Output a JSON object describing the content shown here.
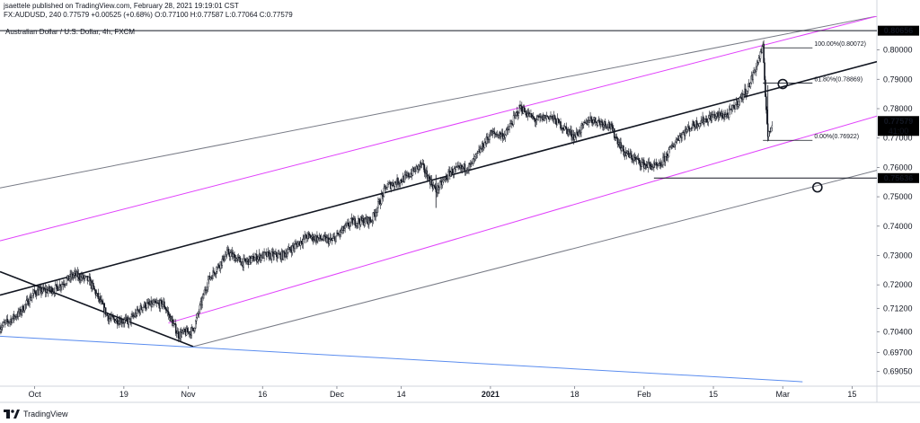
{
  "header": {
    "publisher_line": "jsaettele published on TradingView.com, February 28, 2021 19:19:01 CST",
    "symbol": "FX:AUDUSD, 240",
    "last": "0.77579",
    "change": "+0.00525 (+0.68%)",
    "open_label": "O:",
    "open": "0.77100",
    "high_label": "H:",
    "high": "0.77587",
    "low_label": "L:",
    "low": "0.77064",
    "close_label": "C:",
    "close": "0.77579"
  },
  "footer": {
    "brand": "TradingView"
  },
  "colors": {
    "candle": "#131722",
    "magenta": "#e040fb",
    "blue": "#5b8def",
    "gray": "#787b86",
    "price_tag": "#000000"
  },
  "chart_data": {
    "type": "candlestick",
    "title": "Australian Dollar / U.S. Dollar, 4h, FXCM",
    "y_unit": "USD",
    "ylim": [
      0.6855,
      0.8115
    ],
    "xlim": [
      "2020-09-24",
      "2021-03-20"
    ],
    "y_ticks": [
      0.8,
      0.79,
      0.78,
      0.77,
      0.76,
      0.75,
      0.74,
      0.73,
      0.72,
      0.712,
      0.704,
      0.697,
      0.6905
    ],
    "y_tick_labels": [
      "0.80000",
      "0.79000",
      "0.78000",
      "0.77000",
      "0.76000",
      "0.75000",
      "0.74000",
      "0.73000",
      "0.72000",
      "0.71200",
      "0.70400",
      "0.69700",
      "0.69050"
    ],
    "x_ticks": [
      {
        "date": "2020-10-01",
        "label": "Oct"
      },
      {
        "date": "2020-10-19",
        "label": "19"
      },
      {
        "date": "2020-11-01",
        "label": "Nov"
      },
      {
        "date": "2020-11-16",
        "label": "16"
      },
      {
        "date": "2020-12-01",
        "label": "Dec"
      },
      {
        "date": "2020-12-14",
        "label": "14"
      },
      {
        "date": "2021-01-01",
        "label": "2021"
      },
      {
        "date": "2021-01-18",
        "label": "18"
      },
      {
        "date": "2021-02-01",
        "label": "Feb"
      },
      {
        "date": "2021-02-15",
        "label": "15"
      },
      {
        "date": "2021-03-01",
        "label": "Mar"
      },
      {
        "date": "2021-03-15",
        "label": "15"
      }
    ],
    "price_path": [
      [
        "2020-09-24",
        0.7055
      ],
      [
        "2020-09-28",
        0.7105
      ],
      [
        "2020-10-01",
        0.7175
      ],
      [
        "2020-10-05",
        0.7185
      ],
      [
        "2020-10-09",
        0.7235
      ],
      [
        "2020-10-12",
        0.7215
      ],
      [
        "2020-10-16",
        0.7085
      ],
      [
        "2020-10-20",
        0.7075
      ],
      [
        "2020-10-23",
        0.713
      ],
      [
        "2020-10-27",
        0.7135
      ],
      [
        "2020-10-30",
        0.703
      ],
      [
        "2020-11-02",
        0.7045
      ],
      [
        "2020-11-05",
        0.7215
      ],
      [
        "2020-11-09",
        0.731
      ],
      [
        "2020-11-12",
        0.7275
      ],
      [
        "2020-11-16",
        0.73
      ],
      [
        "2020-11-20",
        0.73
      ],
      [
        "2020-11-25",
        0.7365
      ],
      [
        "2020-11-30",
        0.735
      ],
      [
        "2020-12-04",
        0.7415
      ],
      [
        "2020-12-08",
        0.742
      ],
      [
        "2020-12-11",
        0.7535
      ],
      [
        "2020-12-15",
        0.7565
      ],
      [
        "2020-12-18",
        0.761
      ],
      [
        "2020-12-21",
        0.752
      ],
      [
        "2020-12-24",
        0.7585
      ],
      [
        "2020-12-28",
        0.7605
      ],
      [
        "2021-01-01",
        0.7715
      ],
      [
        "2021-01-04",
        0.771
      ],
      [
        "2021-01-07",
        0.7805
      ],
      [
        "2021-01-10",
        0.776
      ],
      [
        "2021-01-13",
        0.7775
      ],
      [
        "2021-01-18",
        0.7705
      ],
      [
        "2021-01-21",
        0.7765
      ],
      [
        "2021-01-25",
        0.7745
      ],
      [
        "2021-01-28",
        0.765
      ],
      [
        "2021-02-01",
        0.761
      ],
      [
        "2021-02-04",
        0.76
      ],
      [
        "2021-02-08",
        0.7705
      ],
      [
        "2021-02-11",
        0.7745
      ],
      [
        "2021-02-15",
        0.7775
      ],
      [
        "2021-02-18",
        0.778
      ],
      [
        "2021-02-22",
        0.787
      ],
      [
        "2021-02-25",
        0.8007
      ],
      [
        "2021-02-26",
        0.77
      ],
      [
        "2021-02-27",
        0.7758
      ]
    ],
    "wicks": [
      {
        "date": "2020-12-21",
        "high": 0.7575,
        "low": 0.7462
      },
      {
        "date": "2021-02-26",
        "high": 0.788,
        "low": 0.7692
      }
    ],
    "trendlines": [
      {
        "name": "upper-outer",
        "color": "gray",
        "from": [
          "2020-09-24",
          0.753
        ],
        "to": [
          "2021-03-20",
          0.8115
        ]
      },
      {
        "name": "upper-magenta",
        "color": "magenta",
        "from": [
          "2020-09-24",
          0.735
        ],
        "to": [
          "2021-03-20",
          0.8115
        ]
      },
      {
        "name": "median",
        "color": "black",
        "from": [
          "2020-09-24",
          0.7165
        ],
        "to": [
          "2021-03-20",
          0.796
        ]
      },
      {
        "name": "lower-magenta",
        "color": "magenta",
        "from": [
          "2020-10-28",
          0.707
        ],
        "to": [
          "2021-03-20",
          0.7775
        ]
      },
      {
        "name": "lower-outer",
        "color": "gray",
        "from": [
          "2020-11-02",
          0.699
        ],
        "to": [
          "2021-03-20",
          0.759
        ]
      },
      {
        "name": "descending",
        "color": "black",
        "from": [
          "2020-09-24",
          0.7245
        ],
        "to": [
          "2020-11-02",
          0.699
        ]
      },
      {
        "name": "blue-support",
        "color": "blue",
        "from": [
          "2020-09-24",
          0.7025
        ],
        "to": [
          "2021-03-05",
          0.687
        ]
      }
    ],
    "horizontal_levels": [
      {
        "price": 0.80656,
        "label": "0.80656",
        "from": "2020-09-24"
      },
      {
        "price": 0.75636,
        "label": "0.75636",
        "from": "2021-02-03"
      }
    ],
    "fibonacci": {
      "from_date": "2021-02-25",
      "to_date": "2021-03-07",
      "levels": [
        {
          "price": 0.80072,
          "label": "100.00%(0.80072)"
        },
        {
          "price": 0.78869,
          "label": "61.80%(0.78869)"
        },
        {
          "price": 0.76922,
          "label": "0.00%(0.76922)"
        }
      ]
    },
    "markers": [
      {
        "date": "2021-03-01",
        "price": 0.7884
      },
      {
        "date": "2021-03-08",
        "price": 0.7532
      }
    ],
    "last_price": {
      "price": 0.77579,
      "label": "0.77579",
      "countdown": "41:00"
    }
  }
}
